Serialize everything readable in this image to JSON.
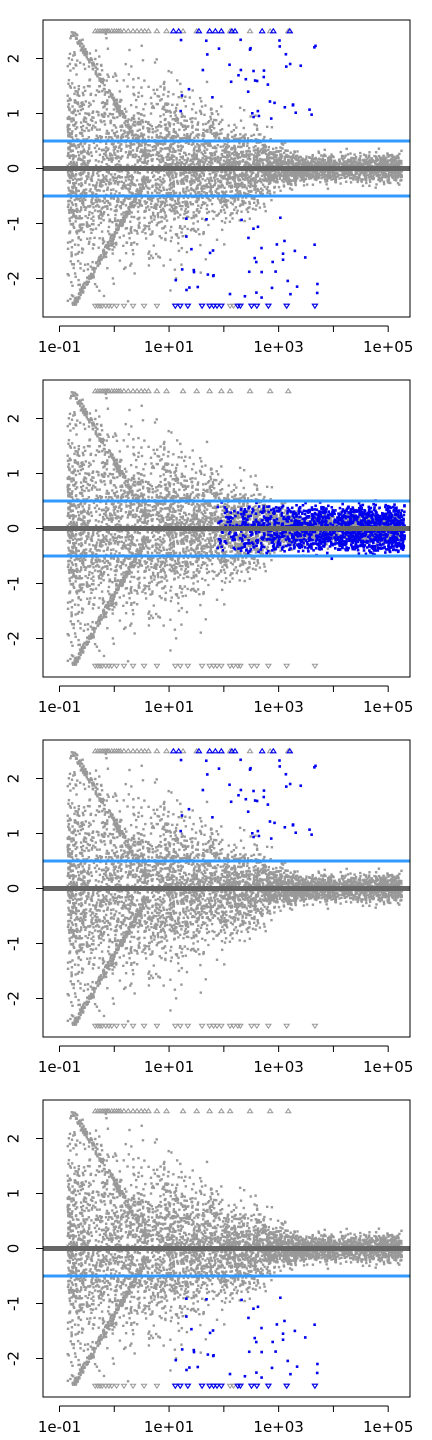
{
  "chart_data": [
    {
      "type": "scatter",
      "title": "",
      "xlabel": "",
      "ylabel": "",
      "xscale": "log",
      "xlim": [
        0.05,
        250000
      ],
      "ylim": [
        -2.7,
        2.7
      ],
      "xticks": [
        0.1,
        10,
        1000,
        100000
      ],
      "xtick_labels": [
        "1e-01",
        "1e+01",
        "1e+03",
        "1e+05"
      ],
      "yticks": [
        -2,
        -1,
        0,
        1,
        2
      ],
      "ytick_labels": [
        "-2",
        "-1",
        "0",
        "1",
        "2"
      ],
      "center_line": {
        "y": 0,
        "color": "#666666"
      },
      "threshold_lines": [
        {
          "y": 0.5,
          "color": "#3399ff"
        },
        {
          "y": -0.5,
          "color": "#3399ff"
        }
      ],
      "colors": {
        "background_points": "#999999",
        "highlighted_points": "#0000ee"
      },
      "highlight_mode": "up_and_down",
      "grid": false,
      "legend": "none"
    },
    {
      "type": "scatter",
      "title": "",
      "xlabel": "",
      "ylabel": "",
      "xscale": "log",
      "xlim": [
        0.05,
        250000
      ],
      "ylim": [
        -2.7,
        2.7
      ],
      "xticks": [
        0.1,
        10,
        1000,
        100000
      ],
      "xtick_labels": [
        "1e-01",
        "1e+01",
        "1e+03",
        "1e+05"
      ],
      "yticks": [
        -2,
        -1,
        0,
        1,
        2
      ],
      "ytick_labels": [
        "-2",
        "-1",
        "0",
        "1",
        "2"
      ],
      "center_line": {
        "y": 0,
        "color": "#666666"
      },
      "threshold_lines": [
        {
          "y": 0.5,
          "color": "#3399ff"
        },
        {
          "y": -0.5,
          "color": "#3399ff"
        }
      ],
      "colors": {
        "background_points": "#999999",
        "highlighted_points": "#0000ee"
      },
      "highlight_mode": "equivalence_band",
      "grid": false,
      "legend": "none"
    },
    {
      "type": "scatter",
      "title": "",
      "xlabel": "",
      "ylabel": "",
      "xscale": "log",
      "xlim": [
        0.05,
        250000
      ],
      "ylim": [
        -2.7,
        2.7
      ],
      "xticks": [
        0.1,
        10,
        1000,
        100000
      ],
      "xtick_labels": [
        "1e-01",
        "1e+01",
        "1e+03",
        "1e+05"
      ],
      "yticks": [
        -2,
        -1,
        0,
        1,
        2
      ],
      "ytick_labels": [
        "-2",
        "-1",
        "0",
        "1",
        "2"
      ],
      "center_line": {
        "y": 0,
        "color": "#666666"
      },
      "threshold_lines": [
        {
          "y": 0.5,
          "color": "#3399ff"
        }
      ],
      "colors": {
        "background_points": "#999999",
        "highlighted_points": "#0000ee"
      },
      "highlight_mode": "up_only",
      "grid": false,
      "legend": "none"
    },
    {
      "type": "scatter",
      "title": "",
      "xlabel": "",
      "ylabel": "",
      "xscale": "log",
      "xlim": [
        0.05,
        250000
      ],
      "ylim": [
        -2.7,
        2.7
      ],
      "xticks": [
        0.1,
        10,
        1000,
        100000
      ],
      "xtick_labels": [
        "1e-01",
        "1e+01",
        "1e+03",
        "1e+05"
      ],
      "yticks": [
        -2,
        -1,
        0,
        1,
        2
      ],
      "ytick_labels": [
        "-2",
        "-1",
        "0",
        "1",
        "2"
      ],
      "center_line": {
        "y": 0,
        "color": "#666666"
      },
      "threshold_lines": [
        {
          "y": -0.5,
          "color": "#3399ff"
        }
      ],
      "colors": {
        "background_points": "#999999",
        "highlighted_points": "#0000ee"
      },
      "highlight_mode": "down_only",
      "grid": false,
      "legend": "none"
    }
  ]
}
